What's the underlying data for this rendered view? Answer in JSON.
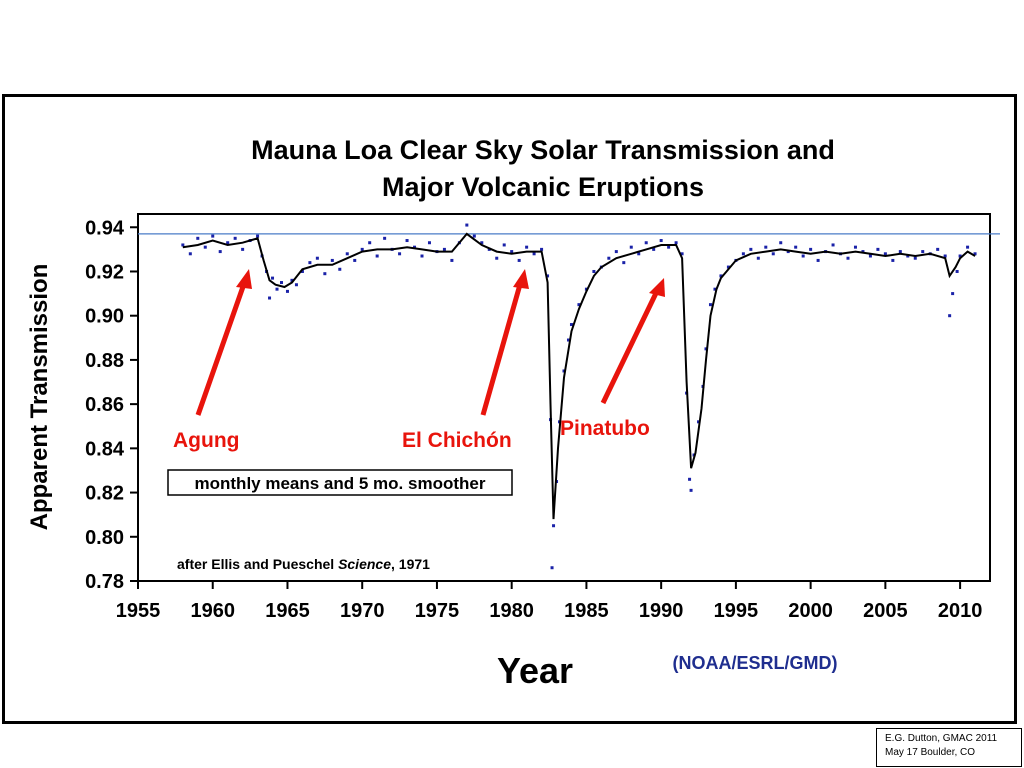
{
  "chart_data": {
    "type": "scatter",
    "title_line1": "Mauna Loa Clear Sky Solar Transmission and",
    "title_line2": "Major Volcanic Eruptions",
    "xlabel": "Year",
    "ylabel": "Apparent Transmission",
    "source_label": "(NOAA/ESRL/GMD)",
    "legend_text": "monthly means and 5 mo. smoother",
    "credit_prefix": "after Ellis and Pueschel ",
    "credit_journal": "Science",
    "credit_suffix": ", 1971",
    "xlim": [
      1955,
      2012
    ],
    "ylim": [
      0.78,
      0.946
    ],
    "x_ticks": [
      1955,
      1960,
      1965,
      1970,
      1975,
      1980,
      1985,
      1990,
      1995,
      2000,
      2005,
      2010
    ],
    "y_ticks": [
      0.78,
      0.8,
      0.82,
      0.84,
      0.86,
      0.88,
      0.9,
      0.92,
      0.94
    ],
    "reference_line_y": 0.937,
    "colors": {
      "points": "#1a22a8",
      "smoother": "#000000",
      "reference": "#4a7cc7",
      "annotation": "#e8140c"
    },
    "annotations": [
      {
        "label": "Agung",
        "eruption_year": 1963.2
      },
      {
        "label": "El Chichón",
        "eruption_year": 1982.3
      },
      {
        "label": "Pinatubo",
        "eruption_year": 1991.5
      }
    ],
    "series": [
      {
        "name": "monthly means",
        "points": [
          [
            1958.0,
            0.932
          ],
          [
            1958.5,
            0.928
          ],
          [
            1959.0,
            0.935
          ],
          [
            1959.5,
            0.931
          ],
          [
            1960.0,
            0.936
          ],
          [
            1960.5,
            0.929
          ],
          [
            1961.0,
            0.933
          ],
          [
            1961.5,
            0.935
          ],
          [
            1962.0,
            0.93
          ],
          [
            1962.5,
            0.934
          ],
          [
            1963.0,
            0.936
          ],
          [
            1963.3,
            0.927
          ],
          [
            1963.6,
            0.92
          ],
          [
            1963.8,
            0.908
          ],
          [
            1964.0,
            0.917
          ],
          [
            1964.3,
            0.912
          ],
          [
            1964.6,
            0.915
          ],
          [
            1965.0,
            0.911
          ],
          [
            1965.3,
            0.916
          ],
          [
            1965.6,
            0.914
          ],
          [
            1966.0,
            0.92
          ],
          [
            1966.5,
            0.924
          ],
          [
            1967.0,
            0.926
          ],
          [
            1967.5,
            0.919
          ],
          [
            1968.0,
            0.925
          ],
          [
            1968.5,
            0.921
          ],
          [
            1969.0,
            0.928
          ],
          [
            1969.5,
            0.925
          ],
          [
            1970.0,
            0.93
          ],
          [
            1970.5,
            0.933
          ],
          [
            1971.0,
            0.927
          ],
          [
            1971.5,
            0.935
          ],
          [
            1972.0,
            0.93
          ],
          [
            1972.5,
            0.928
          ],
          [
            1973.0,
            0.934
          ],
          [
            1973.5,
            0.931
          ],
          [
            1974.0,
            0.927
          ],
          [
            1974.5,
            0.933
          ],
          [
            1975.0,
            0.929
          ],
          [
            1975.5,
            0.93
          ],
          [
            1976.0,
            0.925
          ],
          [
            1976.5,
            0.933
          ],
          [
            1977.0,
            0.941
          ],
          [
            1977.5,
            0.936
          ],
          [
            1978.0,
            0.933
          ],
          [
            1978.5,
            0.93
          ],
          [
            1979.0,
            0.926
          ],
          [
            1979.5,
            0.932
          ],
          [
            1980.0,
            0.929
          ],
          [
            1980.5,
            0.925
          ],
          [
            1981.0,
            0.931
          ],
          [
            1981.5,
            0.928
          ],
          [
            1982.0,
            0.93
          ],
          [
            1982.4,
            0.918
          ],
          [
            1982.6,
            0.853
          ],
          [
            1982.8,
            0.805
          ],
          [
            1983.0,
            0.825
          ],
          [
            1982.7,
            0.786
          ],
          [
            1983.2,
            0.852
          ],
          [
            1983.5,
            0.875
          ],
          [
            1983.8,
            0.889
          ],
          [
            1984.0,
            0.896
          ],
          [
            1984.5,
            0.905
          ],
          [
            1985.0,
            0.912
          ],
          [
            1985.5,
            0.92
          ],
          [
            1986.0,
            0.922
          ],
          [
            1986.5,
            0.926
          ],
          [
            1987.0,
            0.929
          ],
          [
            1987.5,
            0.924
          ],
          [
            1988.0,
            0.931
          ],
          [
            1988.5,
            0.928
          ],
          [
            1989.0,
            0.933
          ],
          [
            1989.5,
            0.93
          ],
          [
            1990.0,
            0.934
          ],
          [
            1990.5,
            0.931
          ],
          [
            1991.0,
            0.933
          ],
          [
            1991.4,
            0.928
          ],
          [
            1991.7,
            0.865
          ],
          [
            1991.9,
            0.826
          ],
          [
            1992.0,
            0.821
          ],
          [
            1992.2,
            0.837
          ],
          [
            1992.5,
            0.852
          ],
          [
            1992.8,
            0.868
          ],
          [
            1993.0,
            0.885
          ],
          [
            1993.3,
            0.905
          ],
          [
            1993.6,
            0.912
          ],
          [
            1994.0,
            0.918
          ],
          [
            1994.5,
            0.922
          ],
          [
            1995.0,
            0.925
          ],
          [
            1995.5,
            0.928
          ],
          [
            1996.0,
            0.93
          ],
          [
            1996.5,
            0.926
          ],
          [
            1997.0,
            0.931
          ],
          [
            1997.5,
            0.928
          ],
          [
            1998.0,
            0.933
          ],
          [
            1998.5,
            0.929
          ],
          [
            1999.0,
            0.931
          ],
          [
            1999.5,
            0.927
          ],
          [
            2000.0,
            0.93
          ],
          [
            2000.5,
            0.925
          ],
          [
            2001.0,
            0.929
          ],
          [
            2001.5,
            0.932
          ],
          [
            2002.0,
            0.928
          ],
          [
            2002.5,
            0.926
          ],
          [
            2003.0,
            0.931
          ],
          [
            2003.5,
            0.929
          ],
          [
            2004.0,
            0.927
          ],
          [
            2004.5,
            0.93
          ],
          [
            2005.0,
            0.928
          ],
          [
            2005.5,
            0.925
          ],
          [
            2006.0,
            0.929
          ],
          [
            2006.5,
            0.927
          ],
          [
            2007.0,
            0.926
          ],
          [
            2007.5,
            0.929
          ],
          [
            2008.0,
            0.928
          ],
          [
            2008.5,
            0.93
          ],
          [
            2009.0,
            0.927
          ],
          [
            2009.3,
            0.9
          ],
          [
            2009.5,
            0.91
          ],
          [
            2009.8,
            0.92
          ],
          [
            2010.0,
            0.927
          ],
          [
            2010.5,
            0.931
          ],
          [
            2011.0,
            0.928
          ]
        ]
      },
      {
        "name": "5 mo. smoother",
        "points": [
          [
            1958.0,
            0.931
          ],
          [
            1959.0,
            0.932
          ],
          [
            1960.0,
            0.934
          ],
          [
            1961.0,
            0.932
          ],
          [
            1962.0,
            0.933
          ],
          [
            1963.0,
            0.935
          ],
          [
            1963.4,
            0.925
          ],
          [
            1963.8,
            0.916
          ],
          [
            1964.2,
            0.914
          ],
          [
            1964.8,
            0.913
          ],
          [
            1965.3,
            0.915
          ],
          [
            1966.0,
            0.921
          ],
          [
            1967.0,
            0.923
          ],
          [
            1968.0,
            0.923
          ],
          [
            1969.0,
            0.926
          ],
          [
            1970.0,
            0.929
          ],
          [
            1971.0,
            0.93
          ],
          [
            1972.0,
            0.93
          ],
          [
            1973.0,
            0.931
          ],
          [
            1974.0,
            0.93
          ],
          [
            1975.0,
            0.929
          ],
          [
            1976.0,
            0.929
          ],
          [
            1977.0,
            0.937
          ],
          [
            1978.0,
            0.932
          ],
          [
            1979.0,
            0.929
          ],
          [
            1980.0,
            0.928
          ],
          [
            1981.0,
            0.929
          ],
          [
            1982.0,
            0.929
          ],
          [
            1982.4,
            0.915
          ],
          [
            1982.6,
            0.86
          ],
          [
            1982.8,
            0.808
          ],
          [
            1983.1,
            0.84
          ],
          [
            1983.5,
            0.872
          ],
          [
            1984.0,
            0.893
          ],
          [
            1984.5,
            0.903
          ],
          [
            1985.0,
            0.911
          ],
          [
            1985.5,
            0.918
          ],
          [
            1986.0,
            0.922
          ],
          [
            1987.0,
            0.926
          ],
          [
            1988.0,
            0.928
          ],
          [
            1989.0,
            0.93
          ],
          [
            1990.0,
            0.932
          ],
          [
            1991.0,
            0.932
          ],
          [
            1991.4,
            0.926
          ],
          [
            1991.7,
            0.87
          ],
          [
            1992.0,
            0.831
          ],
          [
            1992.3,
            0.838
          ],
          [
            1992.7,
            0.858
          ],
          [
            1993.0,
            0.88
          ],
          [
            1993.3,
            0.9
          ],
          [
            1993.7,
            0.912
          ],
          [
            1994.0,
            0.917
          ],
          [
            1995.0,
            0.925
          ],
          [
            1996.0,
            0.928
          ],
          [
            1997.0,
            0.929
          ],
          [
            1998.0,
            0.93
          ],
          [
            1999.0,
            0.929
          ],
          [
            2000.0,
            0.928
          ],
          [
            2001.0,
            0.929
          ],
          [
            2002.0,
            0.928
          ],
          [
            2003.0,
            0.929
          ],
          [
            2004.0,
            0.928
          ],
          [
            2005.0,
            0.927
          ],
          [
            2006.0,
            0.928
          ],
          [
            2007.0,
            0.927
          ],
          [
            2008.0,
            0.928
          ],
          [
            2009.0,
            0.926
          ],
          [
            2009.3,
            0.918
          ],
          [
            2009.7,
            0.922
          ],
          [
            2010.0,
            0.926
          ],
          [
            2010.5,
            0.929
          ],
          [
            2011.0,
            0.927
          ]
        ]
      }
    ]
  },
  "footer": {
    "line1": "E.G. Dutton, GMAC 2011",
    "line2": "May 17  Boulder, CO"
  }
}
